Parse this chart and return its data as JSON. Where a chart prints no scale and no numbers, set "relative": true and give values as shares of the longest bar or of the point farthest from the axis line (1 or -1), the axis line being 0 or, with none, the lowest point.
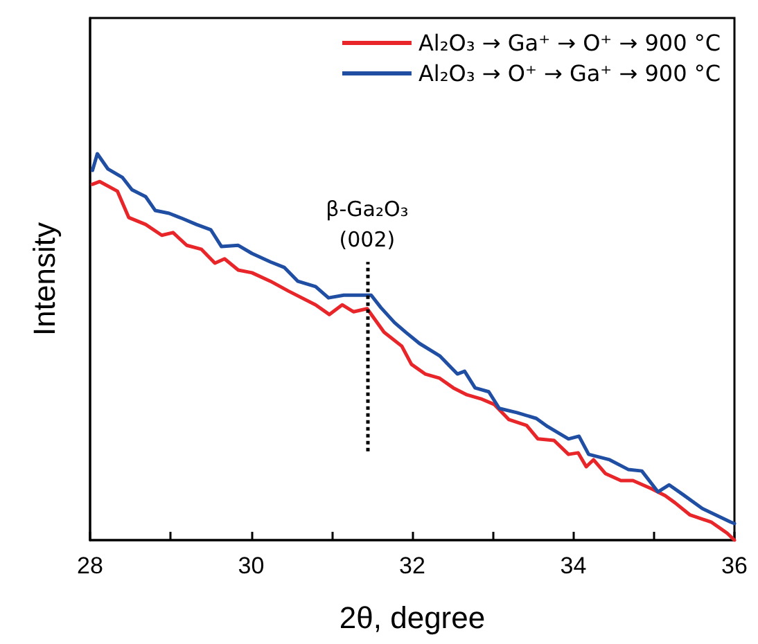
{
  "chart_data": {
    "type": "line",
    "relative": true,
    "xlabel": "2θ, degree",
    "ylabel": "Intensity",
    "xlim": [
      28,
      36
    ],
    "xticks": [
      28,
      {
        "value": 29,
        "label": null
      },
      30,
      {
        "value": 31,
        "label": null
      },
      32,
      {
        "value": 33,
        "label": null
      },
      34,
      {
        "value": 35,
        "label": null
      },
      36
    ],
    "legend": "top right",
    "grid": false,
    "marker": "none",
    "line_style": "solid",
    "series": [
      {
        "name": "Al₂O₃ → Ga⁺ → O⁺ → 900 °C",
        "color": "#e8262a",
        "x": [
          28.03,
          28.12,
          28.34,
          28.48,
          28.69,
          28.89,
          29.03,
          29.2,
          29.38,
          29.55,
          29.67,
          29.84,
          30.01,
          30.24,
          30.46,
          30.8,
          30.97,
          31.13,
          31.27,
          31.44,
          31.65,
          31.87,
          31.99,
          32.16,
          32.34,
          32.51,
          32.68,
          32.85,
          33.02,
          33.2,
          33.42,
          33.56,
          33.76,
          33.94,
          34.06,
          34.16,
          34.25,
          34.4,
          34.59,
          34.74,
          34.97,
          35.14,
          35.26,
          35.45,
          35.71,
          35.91,
          36
        ],
        "values": [
          0.921,
          0.928,
          0.903,
          0.835,
          0.817,
          0.789,
          0.796,
          0.763,
          0.753,
          0.717,
          0.728,
          0.699,
          0.692,
          0.67,
          0.645,
          0.609,
          0.584,
          0.609,
          0.591,
          0.599,
          0.538,
          0.502,
          0.455,
          0.43,
          0.419,
          0.394,
          0.376,
          0.366,
          0.351,
          0.312,
          0.297,
          0.262,
          0.258,
          0.222,
          0.226,
          0.19,
          0.208,
          0.172,
          0.154,
          0.154,
          0.133,
          0.115,
          0.097,
          0.065,
          0.047,
          0.018,
          0
        ]
      },
      {
        "name": "Al₂O₃ → O⁺ → Ga⁺ → 900 °C",
        "color": "#1f4ea3",
        "x": [
          28.03,
          28.09,
          28.22,
          28.4,
          28.52,
          28.69,
          28.81,
          28.98,
          29.15,
          29.32,
          29.5,
          29.63,
          29.84,
          30.01,
          30.24,
          30.41,
          30.58,
          30.8,
          30.96,
          31.15,
          31.27,
          31.49,
          31.61,
          31.78,
          31.92,
          32.09,
          32.34,
          32.56,
          32.65,
          32.78,
          32.95,
          33.08,
          33.3,
          33.54,
          33.68,
          33.94,
          34.07,
          34.19,
          34.45,
          34.68,
          34.85,
          35.05,
          35.19,
          35.36,
          35.6,
          35.95,
          36
        ],
        "values": [
          0.957,
          1.0,
          0.961,
          0.939,
          0.907,
          0.889,
          0.853,
          0.846,
          0.832,
          0.817,
          0.803,
          0.76,
          0.763,
          0.742,
          0.72,
          0.706,
          0.67,
          0.656,
          0.627,
          0.634,
          0.634,
          0.634,
          0.602,
          0.563,
          0.538,
          0.509,
          0.477,
          0.43,
          0.437,
          0.394,
          0.384,
          0.341,
          0.33,
          0.315,
          0.294,
          0.262,
          0.269,
          0.222,
          0.208,
          0.183,
          0.179,
          0.125,
          0.143,
          0.118,
          0.082,
          0.047,
          0.043
        ]
      }
    ],
    "ref_lines": [
      {
        "axis": "x",
        "value": 31.44,
        "line_style": "dotted",
        "color": "#000000",
        "label": "β-Ga₂O₃\n(002)"
      }
    ]
  }
}
